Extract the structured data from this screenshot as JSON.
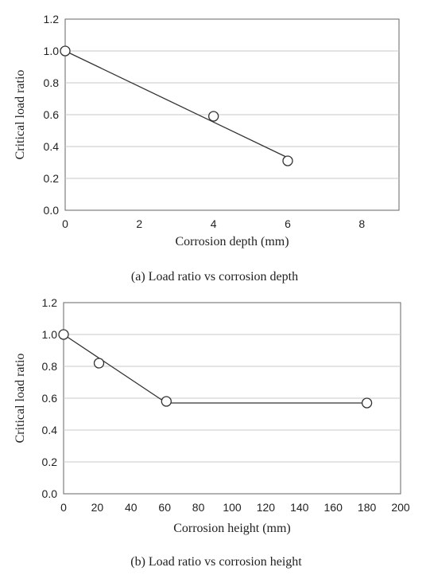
{
  "chart_data": [
    {
      "type": "scatter",
      "title": "",
      "caption": "(a)  Load  ratio  vs  corrosion  depth",
      "xlabel": "Corrosion  depth (mm)",
      "ylabel": "Critical load ratio",
      "xlim": [
        0,
        9
      ],
      "ylim": [
        0.0,
        1.2
      ],
      "x_ticks": [
        0,
        2,
        4,
        6,
        8
      ],
      "y_ticks": [
        0.0,
        0.2,
        0.4,
        0.6,
        0.8,
        1.0,
        1.2
      ],
      "x_tick_labels": [
        "0",
        "2",
        "4",
        "6",
        "8"
      ],
      "y_tick_labels": [
        "0.0",
        "0.2",
        "0.4",
        "0.6",
        "0.8",
        "1.0",
        "1.2"
      ],
      "grid": "horizontal",
      "series": [
        {
          "x": [
            0,
            4,
            6
          ],
          "y": [
            1.0,
            0.59,
            0.31
          ]
        }
      ],
      "fit_line": {
        "x": [
          0,
          6
        ],
        "y": [
          1.0,
          0.33
        ]
      }
    },
    {
      "type": "line",
      "title": "",
      "caption": "(b)  Load  ratio  vs  corrosion  height",
      "xlabel": "Corrosion  height  (mm)",
      "ylabel": "Critical load ratio",
      "xlim": [
        0,
        200
      ],
      "ylim": [
        0.0,
        1.2
      ],
      "x_ticks": [
        0,
        20,
        40,
        60,
        80,
        100,
        120,
        140,
        160,
        180,
        200
      ],
      "y_ticks": [
        0.0,
        0.2,
        0.4,
        0.6,
        0.8,
        1.0,
        1.2
      ],
      "x_tick_labels": [
        "0",
        "20",
        "40",
        "60",
        "80",
        "100",
        "120",
        "140",
        "160",
        "180",
        "200"
      ],
      "y_tick_labels": [
        "0.0",
        "0.2",
        "0.4",
        "0.6",
        "0.8",
        "1.0",
        "1.2"
      ],
      "grid": "horizontal",
      "series": [
        {
          "x": [
            0,
            21,
            61,
            180
          ],
          "y": [
            1.0,
            0.82,
            0.58,
            0.57
          ]
        }
      ],
      "fit_line": {
        "x": [
          0,
          61,
          180
        ],
        "y": [
          1.0,
          0.57,
          0.57
        ]
      }
    }
  ]
}
